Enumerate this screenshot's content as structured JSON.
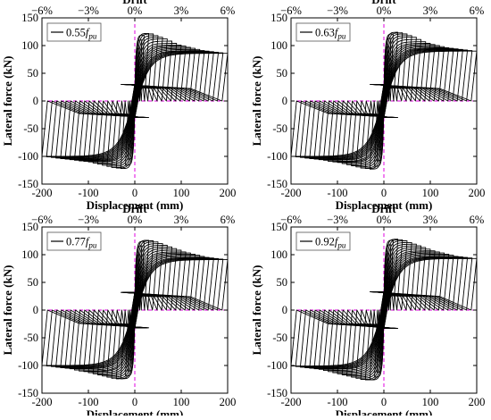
{
  "chart_data": [
    {
      "type": "line",
      "legend": {
        "prefix": "0.55",
        "symbol": "f",
        "subscript": "pu",
        "position": "top-left"
      },
      "xlabel": "Displacement (mm)",
      "ylabel": "Lateral force (kN)",
      "top_axis_label": "Drift",
      "xlim": [
        -200,
        200
      ],
      "ylim": [
        -150,
        150
      ],
      "xticks": [
        -200,
        -100,
        0,
        100,
        200
      ],
      "yticks": [
        -150,
        -100,
        -50,
        0,
        50,
        100,
        150
      ],
      "top_ticks": [
        {
          "value": -200,
          "label": "−6%"
        },
        {
          "value": -100,
          "label": "−3%"
        },
        {
          "value": 0,
          "label": "0%"
        },
        {
          "value": 100,
          "label": "3%"
        },
        {
          "value": 200,
          "label": "6%"
        }
      ],
      "envelope": {
        "amplitudes_mm": [
          5,
          10,
          15,
          20,
          30,
          40,
          50,
          60,
          70,
          80,
          90,
          100,
          110,
          120,
          130,
          140,
          150,
          160,
          170,
          180,
          190,
          200
        ],
        "peak_pos_kN": [
          60,
          95,
          110,
          119,
          122,
          121,
          118,
          115,
          112,
          108,
          104,
          101,
          99,
          97,
          95,
          93,
          91,
          90,
          89,
          88,
          87,
          86
        ],
        "peak_neg_kN": [
          -50,
          -85,
          -105,
          -116,
          -122,
          -121,
          -120,
          -118,
          -116,
          -114,
          -112,
          -110,
          -109,
          -108,
          -107,
          -106,
          -105,
          -104,
          -103,
          -102,
          -101,
          -100
        ],
        "unload_force_kN": 30
      }
    },
    {
      "type": "line",
      "legend": {
        "prefix": "0.63",
        "symbol": "f",
        "subscript": "pu",
        "position": "top-left"
      },
      "xlabel": "Displacement (mm)",
      "ylabel": "Lateral force (kN)",
      "top_axis_label": "Drift",
      "xlim": [
        -200,
        200
      ],
      "ylim": [
        -150,
        150
      ],
      "xticks": [
        -200,
        -100,
        0,
        100,
        200
      ],
      "yticks": [
        -150,
        -100,
        -50,
        0,
        50,
        100,
        150
      ],
      "top_ticks": [
        {
          "value": -200,
          "label": "−6%"
        },
        {
          "value": -100,
          "label": "−3%"
        },
        {
          "value": 0,
          "label": "0%"
        },
        {
          "value": 100,
          "label": "3%"
        },
        {
          "value": 200,
          "label": "6%"
        }
      ],
      "envelope": {
        "amplitudes_mm": [
          5,
          10,
          15,
          20,
          30,
          40,
          50,
          60,
          70,
          80,
          90,
          100,
          110,
          120,
          130,
          140,
          150,
          160,
          170,
          180,
          190,
          200
        ],
        "peak_pos_kN": [
          62,
          98,
          113,
          121,
          124,
          123,
          121,
          118,
          115,
          111,
          107,
          104,
          102,
          100,
          98,
          96,
          95,
          94,
          93,
          92,
          91,
          90
        ],
        "peak_neg_kN": [
          -52,
          -88,
          -108,
          -118,
          -123,
          -122,
          -121,
          -119,
          -117,
          -115,
          -113,
          -111,
          -110,
          -109,
          -107,
          -106,
          -105,
          -104,
          -103,
          -102,
          -101,
          -100
        ],
        "unload_force_kN": 30
      }
    },
    {
      "type": "line",
      "legend": {
        "prefix": "0.77",
        "symbol": "f",
        "subscript": "pu",
        "position": "top-left"
      },
      "xlabel": "Displacement (mm)",
      "ylabel": "Lateral force (kN)",
      "top_axis_label": "Drift",
      "xlim": [
        -200,
        200
      ],
      "ylim": [
        -150,
        150
      ],
      "xticks": [
        -200,
        -100,
        0,
        100,
        200
      ],
      "yticks": [
        -150,
        -100,
        -50,
        0,
        50,
        100,
        150
      ],
      "top_ticks": [
        {
          "value": -200,
          "label": "−6%"
        },
        {
          "value": -100,
          "label": "−3%"
        },
        {
          "value": 0,
          "label": "0%"
        },
        {
          "value": 100,
          "label": "3%"
        },
        {
          "value": 200,
          "label": "6%"
        }
      ],
      "envelope": {
        "amplitudes_mm": [
          5,
          10,
          15,
          20,
          30,
          40,
          50,
          60,
          70,
          80,
          90,
          100,
          110,
          120,
          130,
          140,
          150,
          160,
          170,
          180,
          190,
          200
        ],
        "peak_pos_kN": [
          64,
          100,
          116,
          124,
          126,
          125,
          123,
          120,
          117,
          114,
          111,
          108,
          105,
          103,
          101,
          99,
          97,
          95,
          94,
          93,
          92,
          91
        ],
        "peak_neg_kN": [
          -54,
          -90,
          -110,
          -119,
          -124,
          -124,
          -123,
          -121,
          -119,
          -117,
          -115,
          -113,
          -111,
          -110,
          -108,
          -106,
          -105,
          -104,
          -103,
          -102,
          -101,
          -100
        ],
        "unload_force_kN": 32
      }
    },
    {
      "type": "line",
      "legend": {
        "prefix": "0.92",
        "symbol": "f",
        "subscript": "pu",
        "position": "top-left"
      },
      "xlabel": "Displacement (mm)",
      "ylabel": "Lateral force (kN)",
      "top_axis_label": "Drift",
      "xlim": [
        -200,
        200
      ],
      "ylim": [
        -150,
        150
      ],
      "xticks": [
        -200,
        -100,
        0,
        100,
        200
      ],
      "yticks": [
        -150,
        -100,
        -50,
        0,
        50,
        100,
        150
      ],
      "top_ticks": [
        {
          "value": -200,
          "label": "−6%"
        },
        {
          "value": -100,
          "label": "−3%"
        },
        {
          "value": 0,
          "label": "0%"
        },
        {
          "value": 100,
          "label": "3%"
        },
        {
          "value": 200,
          "label": "6%"
        }
      ],
      "envelope": {
        "amplitudes_mm": [
          5,
          10,
          15,
          20,
          30,
          40,
          50,
          60,
          70,
          80,
          90,
          100,
          110,
          120,
          130,
          140,
          150,
          160,
          170,
          180,
          190,
          200
        ],
        "peak_pos_kN": [
          66,
          102,
          118,
          126,
          128,
          127,
          125,
          122,
          119,
          116,
          113,
          110,
          107,
          105,
          103,
          101,
          99,
          97,
          96,
          95,
          94,
          93
        ],
        "peak_neg_kN": [
          -55,
          -92,
          -112,
          -121,
          -126,
          -126,
          -125,
          -123,
          -121,
          -119,
          -117,
          -115,
          -113,
          -111,
          -109,
          -107,
          -106,
          -105,
          -104,
          -103,
          -102,
          -101
        ],
        "unload_force_kN": 33
      }
    }
  ],
  "colors": {
    "curve": "#000000",
    "reference_line": "#e000e0",
    "axis": "#000000"
  }
}
